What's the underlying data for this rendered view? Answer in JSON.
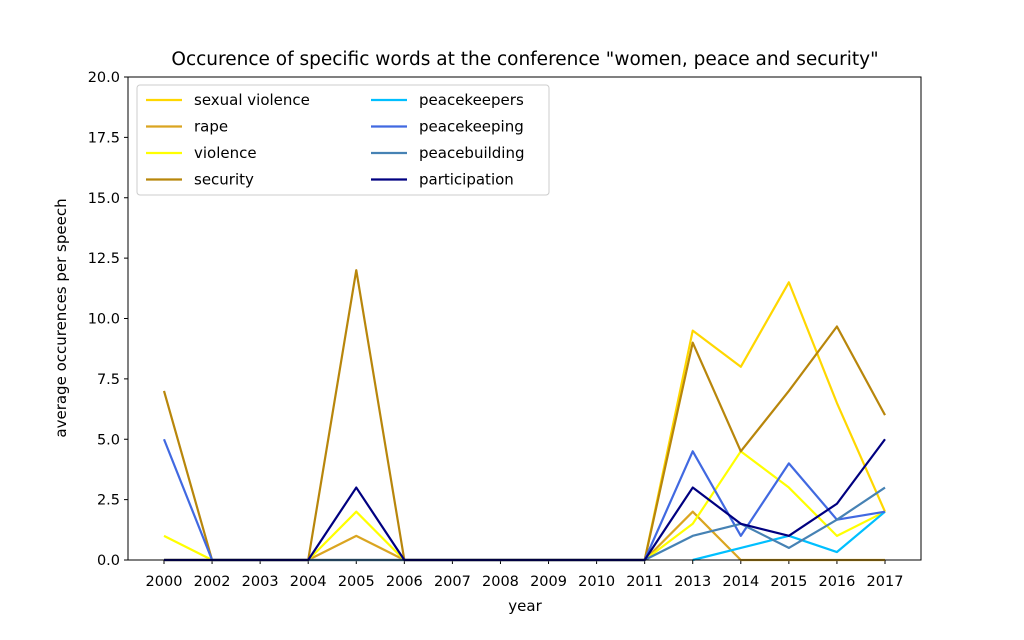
{
  "chart_data": {
    "type": "line",
    "title": "Occurence of specific words at the conference \"women, peace and security\"",
    "xlabel": "year",
    "ylabel": "average occurences per speech",
    "categories": [
      "2000",
      "2002",
      "2003",
      "2004",
      "2005",
      "2006",
      "2007",
      "2008",
      "2009",
      "2010",
      "2011",
      "2013",
      "2014",
      "2015",
      "2016",
      "2017"
    ],
    "ylim": [
      0,
      20
    ],
    "yticks": [
      "0.0",
      "2.5",
      "5.0",
      "7.5",
      "10.0",
      "12.5",
      "15.0",
      "17.5",
      "20.0"
    ],
    "grid": false,
    "legend_position": "top-left",
    "series": [
      {
        "name": "sexual violence",
        "color": "#FFD700",
        "values": [
          0,
          0,
          0,
          0,
          0,
          0,
          0,
          0,
          0,
          0,
          0,
          9.5,
          8.0,
          11.5,
          6.5,
          2.0
        ]
      },
      {
        "name": "rape",
        "color": "#DAA520",
        "values": [
          0,
          0,
          0,
          0,
          1.0,
          0,
          0,
          0,
          0,
          0,
          0,
          2.0,
          0,
          0,
          0,
          0
        ]
      },
      {
        "name": "violence",
        "color": "#FFFF00",
        "values": [
          1.0,
          0,
          0,
          0,
          2.0,
          0,
          0,
          0,
          0,
          0,
          0,
          1.5,
          4.5,
          3.0,
          1.0,
          2.0
        ]
      },
      {
        "name": "security",
        "color": "#B8860B",
        "values": [
          7.0,
          0,
          0,
          0,
          12.0,
          0,
          0,
          0,
          0,
          0,
          0,
          9.0,
          4.5,
          7.0,
          9.67,
          6.0
        ]
      },
      {
        "name": "peacekeepers",
        "color": "#00BFFF",
        "values": [
          null,
          null,
          null,
          null,
          null,
          null,
          null,
          null,
          null,
          null,
          null,
          0,
          0.5,
          1.0,
          0.33,
          2.0
        ]
      },
      {
        "name": "peacekeeping",
        "color": "#4169E1",
        "values": [
          5.0,
          0,
          0,
          0,
          0,
          0,
          0,
          0,
          0,
          0,
          0,
          4.5,
          1.0,
          4.0,
          1.67,
          2.0
        ]
      },
      {
        "name": "peacebuilding",
        "color": "#4682B4",
        "values": [
          0,
          0,
          0,
          0,
          0,
          0,
          0,
          0,
          0,
          0,
          0,
          1.0,
          1.5,
          0.5,
          1.67,
          3.0
        ]
      },
      {
        "name": "participation",
        "color": "#000080",
        "values": [
          0,
          0,
          0,
          0,
          3.0,
          0,
          0,
          0,
          0,
          0,
          0,
          3.0,
          1.5,
          1.0,
          2.33,
          5.0
        ]
      }
    ]
  }
}
